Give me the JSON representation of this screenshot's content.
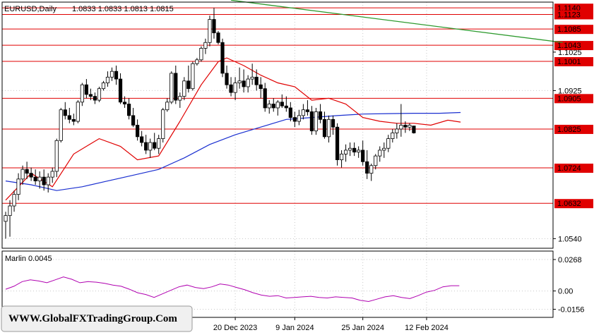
{
  "header": {
    "symbol_tf": "EURUSD,Daily",
    "ohlc": "1.0833 1.0833 1.0813 1.0815"
  },
  "watermark": "WWW.GlobalFXTradingGroup.Com",
  "colors": {
    "grid": "#c8c8c8",
    "level": "#e00000",
    "ma_fast": "#e00000",
    "ma_slow": "#1a2fd0",
    "trendline": "#2e9a2e",
    "oscillator": "#b000b0",
    "bull": "#ffffff",
    "bear": "#000000"
  },
  "chart_data": [
    {
      "type": "candlestick",
      "title": "EURUSD,Daily",
      "ylim": [
        1.0515,
        1.1155
      ],
      "y_ticks": [
        "1.1140",
        "1.1123",
        "1.1085",
        "1.1043",
        "1.1025",
        "1.1001",
        "1.0925",
        "1.0905",
        "1.0825",
        "1.0724",
        "1.0632",
        "1.0540"
      ],
      "y_tick_values": [
        1.114,
        1.1123,
        1.1085,
        1.1043,
        1.1025,
        1.1001,
        1.0925,
        1.0905,
        1.0825,
        1.0724,
        1.0632,
        1.054
      ],
      "x_ticks": [
        "20 Dec 2023",
        "9 Jan 2024",
        "25 Jan 2024",
        "12 Feb 2024"
      ],
      "x_tick_bars": [
        54,
        68,
        84,
        99
      ],
      "levels": [
        1.114,
        1.1123,
        1.1085,
        1.1043,
        1.1001,
        1.0905,
        1.0825,
        1.0724,
        1.0632
      ],
      "level_labels": [
        "1.1140",
        "1.1123",
        "1.1085",
        "1.1043",
        "1.1001",
        "1.0905",
        "1.0825",
        "1.0724",
        "1.0632"
      ],
      "trendline": {
        "from": [
          53,
          1.116
        ],
        "to": [
          131,
          1.105
        ]
      },
      "candles": [
        [
          1.0585,
          1.061,
          1.054,
          1.06
        ],
        [
          1.06,
          1.064,
          1.0545,
          1.0625
        ],
        [
          1.0625,
          1.0665,
          1.061,
          1.0655
        ],
        [
          1.0655,
          1.071,
          1.064,
          1.0695
        ],
        [
          1.0695,
          1.073,
          1.068,
          1.072
        ],
        [
          1.072,
          1.074,
          1.0695,
          1.071
        ],
        [
          1.071,
          1.0725,
          1.069,
          1.07
        ],
        [
          1.07,
          1.072,
          1.068,
          1.069
        ],
        [
          1.069,
          1.0715,
          1.067,
          1.07
        ],
        [
          1.07,
          1.072,
          1.0665,
          1.068
        ],
        [
          1.068,
          1.071,
          1.066,
          1.07
        ],
        [
          1.07,
          1.0725,
          1.0685,
          1.0715
        ],
        [
          1.0715,
          1.08,
          1.07,
          1.0795
        ],
        [
          1.0795,
          1.088,
          1.079,
          1.0875
        ],
        [
          1.0875,
          1.0895,
          1.085,
          1.086
        ],
        [
          1.086,
          1.088,
          1.084,
          1.085
        ],
        [
          1.085,
          1.0865,
          1.0835,
          1.0845
        ],
        [
          1.0845,
          1.09,
          1.084,
          1.0895
        ],
        [
          1.0895,
          1.0945,
          1.0885,
          1.094
        ],
        [
          1.094,
          1.0955,
          1.0905,
          1.0915
        ],
        [
          1.0915,
          1.093,
          1.09,
          1.091
        ],
        [
          1.091,
          1.092,
          1.089,
          1.09
        ],
        [
          1.09,
          1.0935,
          1.0895,
          1.093
        ],
        [
          1.093,
          1.095,
          1.0925,
          1.0945
        ],
        [
          1.0945,
          1.0975,
          1.0935,
          1.096
        ],
        [
          1.096,
          1.0985,
          1.095,
          1.0975
        ],
        [
          1.0975,
          1.099,
          1.094,
          1.0955
        ],
        [
          1.0955,
          1.097,
          1.089,
          1.0895
        ],
        [
          1.0895,
          1.091,
          1.088,
          1.089
        ],
        [
          1.089,
          1.0905,
          1.085,
          1.086
        ],
        [
          1.086,
          1.088,
          1.083,
          1.0835
        ],
        [
          1.0835,
          1.085,
          1.0795,
          1.0805
        ],
        [
          1.0805,
          1.082,
          1.078,
          1.079
        ],
        [
          1.079,
          1.081,
          1.076,
          1.077
        ],
        [
          1.077,
          1.08,
          1.075,
          1.079
        ],
        [
          1.079,
          1.0815,
          1.077,
          1.0775
        ],
        [
          1.0775,
          1.081,
          1.076,
          1.08
        ],
        [
          1.08,
          1.088,
          1.079,
          1.0875
        ],
        [
          1.0875,
          1.0905,
          1.087,
          1.0895
        ],
        [
          1.0895,
          1.0975,
          1.089,
          1.097
        ],
        [
          1.097,
          1.099,
          1.089,
          1.09
        ],
        [
          1.09,
          1.092,
          1.088,
          1.091
        ],
        [
          1.091,
          1.096,
          1.09,
          1.095
        ],
        [
          1.095,
          1.099,
          1.092,
          1.093
        ],
        [
          1.093,
          1.1,
          1.0925,
          1.0995
        ],
        [
          1.0995,
          1.101,
          1.099,
          1.1005
        ],
        [
          1.1005,
          1.104,
          1.1,
          1.1035
        ],
        [
          1.1035,
          1.106,
          1.102,
          1.105
        ],
        [
          1.105,
          1.112,
          1.104,
          1.111
        ],
        [
          1.111,
          1.114,
          1.106,
          1.1075
        ],
        [
          1.1075,
          1.108,
          1.1045,
          1.105
        ],
        [
          1.105,
          1.106,
          1.096,
          1.097
        ],
        [
          1.097,
          1.099,
          1.093,
          1.094
        ],
        [
          1.094,
          1.096,
          1.091,
          1.092
        ],
        [
          1.092,
          1.096,
          1.09,
          1.0945
        ],
        [
          1.0945,
          1.0985,
          1.093,
          1.095
        ],
        [
          1.095,
          1.098,
          1.092,
          1.0935
        ],
        [
          1.0935,
          1.0965,
          1.092,
          1.0955
        ],
        [
          1.0955,
          1.0995,
          1.094,
          1.096
        ],
        [
          1.096,
          1.098,
          1.0925,
          1.094
        ],
        [
          1.094,
          1.096,
          1.0905,
          1.093
        ],
        [
          1.093,
          1.0945,
          1.087,
          1.088
        ],
        [
          1.088,
          1.09,
          1.0865,
          1.089
        ],
        [
          1.089,
          1.0905,
          1.087,
          1.088
        ],
        [
          1.088,
          1.09,
          1.086,
          1.0895
        ],
        [
          1.0895,
          1.0915,
          1.088,
          1.0885
        ],
        [
          1.0885,
          1.091,
          1.087,
          1.088
        ],
        [
          1.088,
          1.0895,
          1.0845,
          1.0855
        ],
        [
          1.0855,
          1.087,
          1.083,
          1.0845
        ],
        [
          1.0845,
          1.0875,
          1.0835,
          1.086
        ],
        [
          1.086,
          1.089,
          1.085,
          1.0875
        ],
        [
          1.0875,
          1.09,
          1.086,
          1.087
        ],
        [
          1.087,
          1.0885,
          1.081,
          1.082
        ],
        [
          1.082,
          1.088,
          1.081,
          1.087
        ],
        [
          1.087,
          1.089,
          1.084,
          1.085
        ],
        [
          1.085,
          1.087,
          1.08,
          1.0805
        ],
        [
          1.0805,
          1.086,
          1.079,
          1.085
        ],
        [
          1.085,
          1.086,
          1.081,
          1.083
        ],
        [
          1.083,
          1.084,
          1.073,
          1.0745
        ],
        [
          1.0745,
          1.077,
          1.0725,
          1.076
        ],
        [
          1.076,
          1.0785,
          1.074,
          1.077
        ],
        [
          1.077,
          1.079,
          1.0755,
          1.0775
        ],
        [
          1.0775,
          1.079,
          1.0755,
          1.0765
        ],
        [
          1.0765,
          1.078,
          1.075,
          1.077
        ],
        [
          1.077,
          1.0795,
          1.073,
          1.074
        ],
        [
          1.074,
          1.077,
          1.0695,
          1.071
        ],
        [
          1.071,
          1.0735,
          1.069,
          1.073
        ],
        [
          1.073,
          1.076,
          1.072,
          1.0755
        ],
        [
          1.0755,
          1.078,
          1.074,
          1.077
        ],
        [
          1.077,
          1.079,
          1.075,
          1.0775
        ],
        [
          1.0775,
          1.081,
          1.0765,
          1.08
        ],
        [
          1.08,
          1.0825,
          1.079,
          1.0815
        ],
        [
          1.0815,
          1.084,
          1.08,
          1.0825
        ],
        [
          1.0825,
          1.089,
          1.0805,
          1.0835
        ],
        [
          1.0835,
          1.0845,
          1.0815,
          1.083
        ],
        [
          1.083,
          1.084,
          1.082,
          1.0835
        ],
        [
          1.0833,
          1.0833,
          1.0813,
          1.0815
        ]
      ],
      "ma_fast": [
        [
          0,
          1.064
        ],
        [
          6,
          1.071
        ],
        [
          11,
          1.0675
        ],
        [
          16,
          1.076
        ],
        [
          22,
          1.08
        ],
        [
          27,
          1.078
        ],
        [
          31,
          1.0745
        ],
        [
          36,
          1.0755
        ],
        [
          41,
          1.0845
        ],
        [
          46,
          1.094
        ],
        [
          50,
          1.1
        ],
        [
          52,
          1.101
        ],
        [
          56,
          1.099
        ],
        [
          60,
          1.0965
        ],
        [
          64,
          1.0945
        ],
        [
          68,
          1.0935
        ],
        [
          72,
          1.09
        ],
        [
          76,
          1.0905
        ],
        [
          80,
          1.089
        ],
        [
          84,
          1.0855
        ],
        [
          88,
          1.0845
        ],
        [
          92,
          1.084
        ],
        [
          96,
          1.084
        ],
        [
          100,
          1.0835
        ],
        [
          104,
          1.0848
        ],
        [
          107,
          1.0843
        ]
      ],
      "ma_slow": [
        [
          0,
          1.069
        ],
        [
          6,
          1.068
        ],
        [
          12,
          1.0665
        ],
        [
          18,
          1.0675
        ],
        [
          24,
          1.069
        ],
        [
          30,
          1.0705
        ],
        [
          36,
          1.072
        ],
        [
          42,
          1.075
        ],
        [
          48,
          1.0785
        ],
        [
          54,
          1.081
        ],
        [
          60,
          1.083
        ],
        [
          66,
          1.085
        ],
        [
          72,
          1.0855
        ],
        [
          78,
          1.086
        ],
        [
          84,
          1.0864
        ],
        [
          90,
          1.0865
        ],
        [
          96,
          1.0866
        ],
        [
          102,
          1.0866
        ],
        [
          107,
          1.0868
        ]
      ]
    },
    {
      "type": "line",
      "title": "Marlin 0.0045",
      "ylim": [
        -0.0225,
        0.034
      ],
      "y_ticks": [
        "0.0268",
        "0.00",
        "-0.0156"
      ],
      "y_tick_values": [
        0.0268,
        0.0,
        -0.0156
      ],
      "series": [
        {
          "name": "Marlin",
          "points": [
            [
              0,
              0.0015
            ],
            [
              2,
              0.004
            ],
            [
              4,
              0.008
            ],
            [
              6,
              0.0095
            ],
            [
              8,
              0.0085
            ],
            [
              10,
              0.007
            ],
            [
              12,
              0.0095
            ],
            [
              14,
              0.012
            ],
            [
              16,
              0.01
            ],
            [
              18,
              0.007
            ],
            [
              20,
              0.008
            ],
            [
              22,
              0.0075
            ],
            [
              24,
              0.0065
            ],
            [
              26,
              0.005
            ],
            [
              28,
              0.004
            ],
            [
              30,
              0.0015
            ],
            [
              32,
              -0.0015
            ],
            [
              34,
              -0.003
            ],
            [
              36,
              -0.0055
            ],
            [
              38,
              -0.0025
            ],
            [
              40,
              0.0005
            ],
            [
              42,
              0.0035
            ],
            [
              44,
              0.005
            ],
            [
              46,
              0.003
            ],
            [
              48,
              0.002
            ],
            [
              50,
              0.0035
            ],
            [
              52,
              0.006
            ],
            [
              54,
              0.005
            ],
            [
              56,
              0.003
            ],
            [
              58,
              0.001
            ],
            [
              60,
              -0.0015
            ],
            [
              62,
              -0.0035
            ],
            [
              64,
              -0.0045
            ],
            [
              66,
              -0.004
            ],
            [
              68,
              -0.006
            ],
            [
              70,
              -0.0055
            ],
            [
              72,
              -0.005
            ],
            [
              74,
              -0.0045
            ],
            [
              76,
              -0.0055
            ],
            [
              78,
              -0.006
            ],
            [
              80,
              -0.005
            ],
            [
              82,
              -0.0055
            ],
            [
              84,
              -0.006
            ],
            [
              86,
              -0.008
            ],
            [
              88,
              -0.009
            ],
            [
              90,
              -0.007
            ],
            [
              92,
              -0.005
            ],
            [
              94,
              -0.004
            ],
            [
              96,
              -0.0055
            ],
            [
              98,
              -0.0065
            ],
            [
              100,
              -0.004
            ],
            [
              102,
              -0.001
            ],
            [
              104,
              0.0005
            ],
            [
              106,
              0.0035
            ],
            [
              108,
              0.0045
            ],
            [
              110,
              0.0045
            ]
          ]
        }
      ]
    }
  ]
}
